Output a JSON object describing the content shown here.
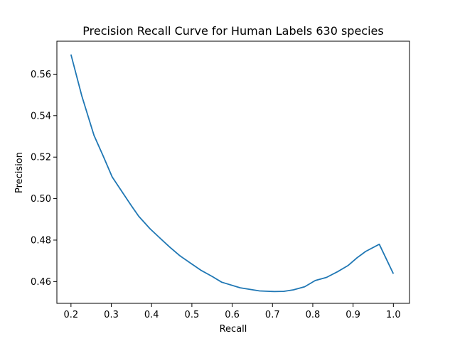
{
  "chart_data": {
    "type": "line",
    "title": "Precision Recall Curve for Human Labels 630 species",
    "xlabel": "Recall",
    "ylabel": "Precision",
    "xlim": [
      0.165,
      1.04
    ],
    "ylim": [
      0.4495,
      0.5759
    ],
    "xticks": [
      0.2,
      0.3,
      0.4,
      0.5,
      0.6,
      0.7,
      0.8,
      0.9,
      1.0
    ],
    "xtick_labels": [
      "0.2",
      "0.3",
      "0.4",
      "0.5",
      "0.6",
      "0.7",
      "0.8",
      "0.9",
      "1.0"
    ],
    "yticks": [
      0.46,
      0.48,
      0.5,
      0.52,
      0.54,
      0.56
    ],
    "ytick_labels": [
      "0.46",
      "0.48",
      "0.50",
      "0.52",
      "0.54",
      "0.56"
    ],
    "grid": false,
    "color": "#1f77b4",
    "series": [
      {
        "x": [
          0.2,
          0.227,
          0.257,
          0.28,
          0.302,
          0.326,
          0.35,
          0.368,
          0.396,
          0.418,
          0.444,
          0.47,
          0.496,
          0.522,
          0.55,
          0.574,
          0.62,
          0.668,
          0.705,
          0.728,
          0.752,
          0.78,
          0.806,
          0.834,
          0.862,
          0.888,
          0.91,
          0.931,
          0.965,
          1.0
        ],
        "y": [
          0.5695,
          0.5495,
          0.5305,
          0.5205,
          0.5105,
          0.5035,
          0.4965,
          0.4915,
          0.4855,
          0.4815,
          0.4768,
          0.4725,
          0.469,
          0.4655,
          0.4625,
          0.4597,
          0.457,
          0.4555,
          0.4552,
          0.4553,
          0.456,
          0.4575,
          0.4605,
          0.462,
          0.4648,
          0.4678,
          0.4715,
          0.4745,
          0.478,
          0.4638
        ]
      }
    ]
  }
}
